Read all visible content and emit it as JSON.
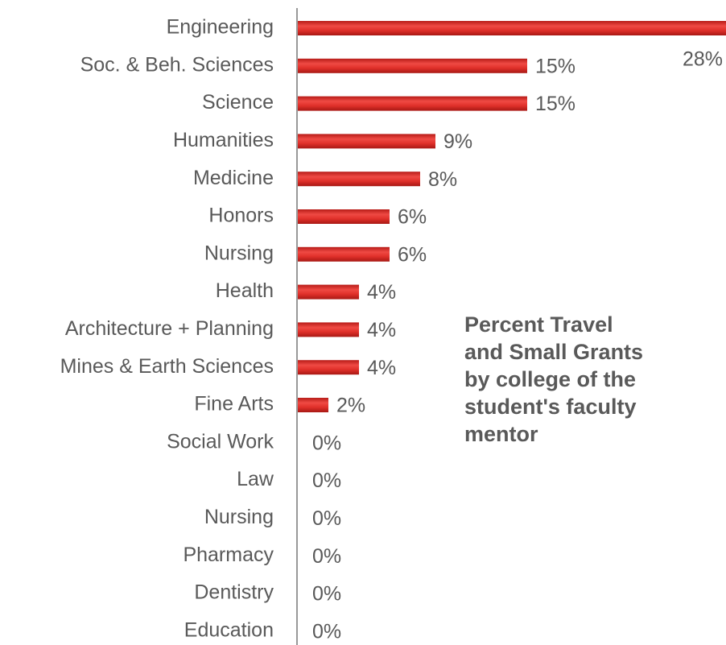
{
  "chart_data": {
    "type": "bar",
    "orientation": "horizontal",
    "title": "Percent Travel and Small Grants by college of the student's faculty mentor",
    "categories": [
      "Engineering",
      "Soc. & Beh. Sciences",
      "Science",
      "Humanities",
      "Medicine",
      "Honors",
      "Nursing",
      "Health",
      "Architecture + Planning",
      "Mines & Earth Sciences",
      "Fine Arts",
      "Social Work",
      "Law",
      "Nursing",
      "Pharmacy",
      "Dentistry",
      "Education"
    ],
    "values": [
      28,
      15,
      15,
      9,
      8,
      6,
      6,
      4,
      4,
      4,
      2,
      0,
      0,
      0,
      0,
      0,
      0
    ],
    "value_labels": [
      "28%",
      "15%",
      "15%",
      "9%",
      "8%",
      "6%",
      "6%",
      "4%",
      "4%",
      "4%",
      "2%",
      "0%",
      "0%",
      "0%",
      "0%",
      "0%",
      "0%"
    ],
    "color": "#e0302a"
  }
}
